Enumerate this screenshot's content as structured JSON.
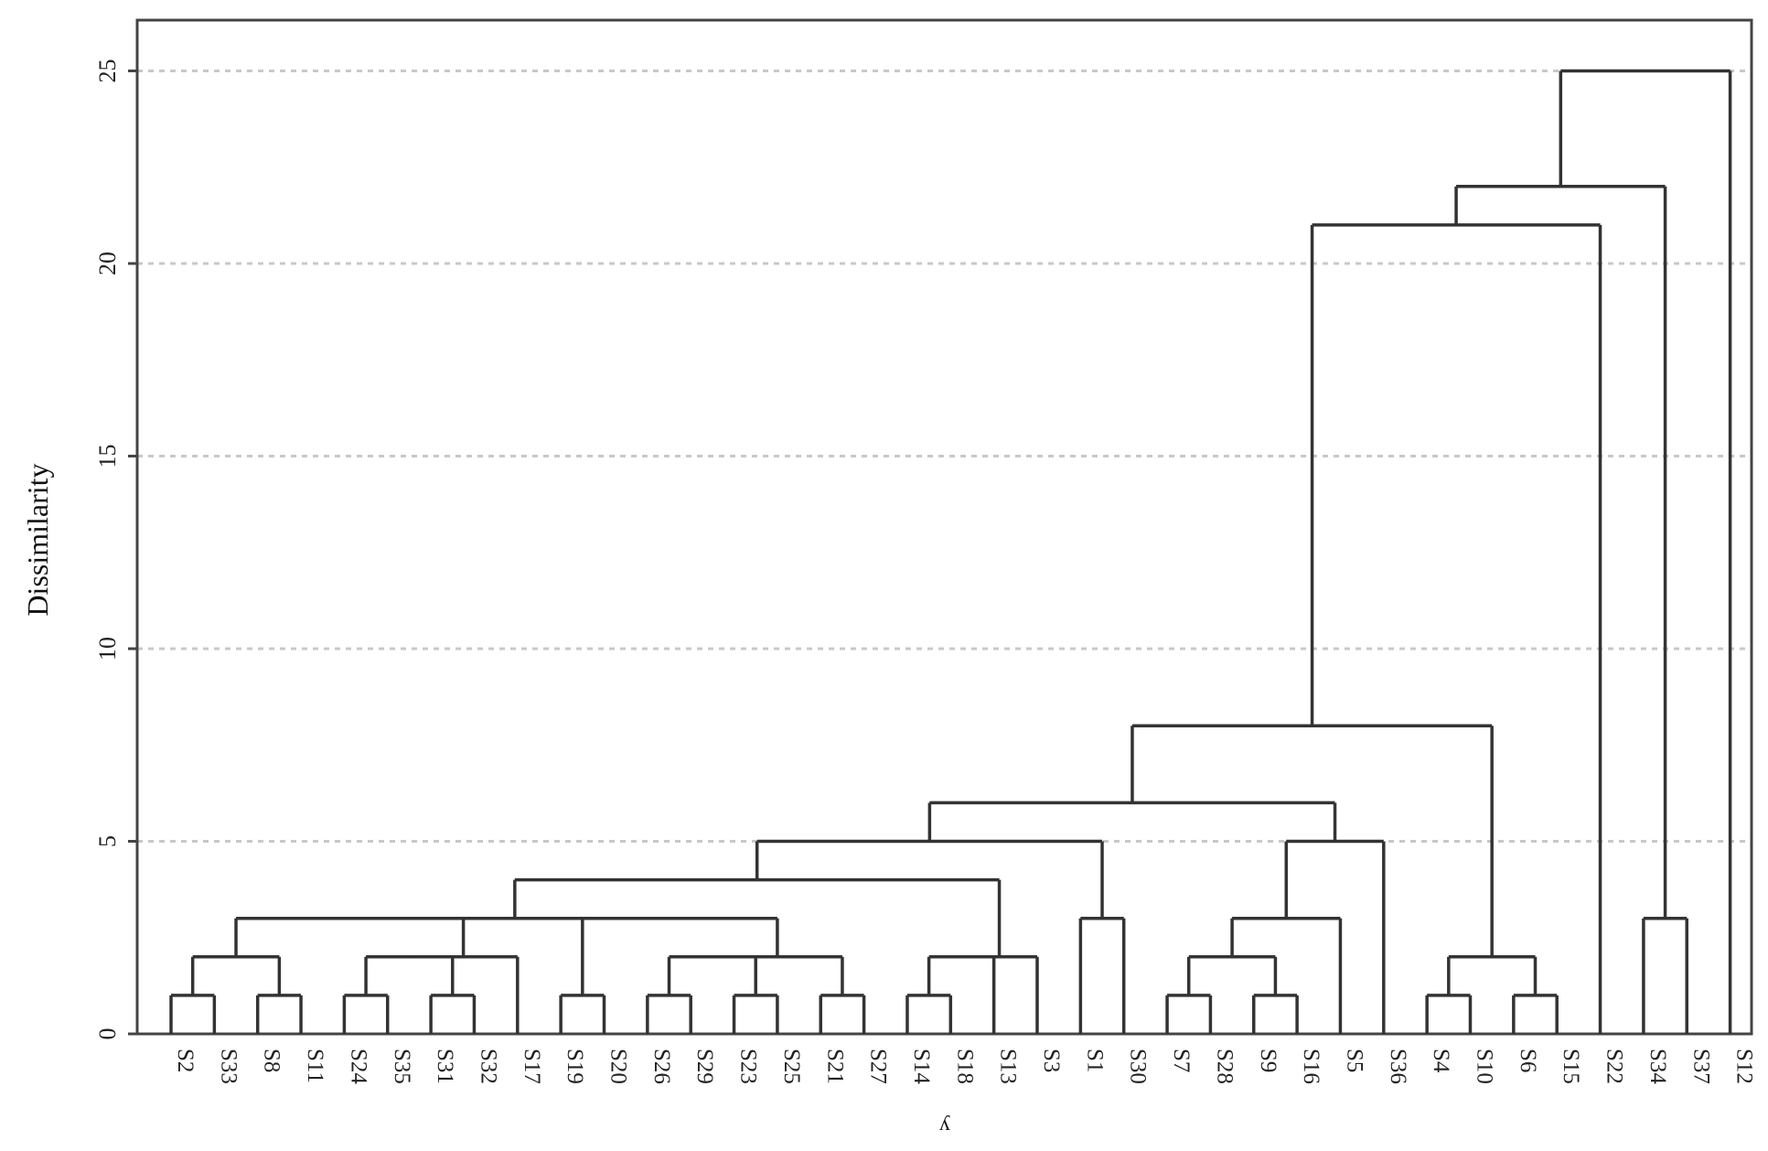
{
  "chart_data": {
    "type": "dendrogram",
    "ylabel": "Dissimilarity",
    "xlabel": "y",
    "ylim": [
      0,
      26.3
    ],
    "yticks": [
      0,
      5,
      10,
      15,
      20,
      25
    ],
    "grid": "horizontal dashed",
    "leaves": [
      "S2",
      "S33",
      "S8",
      "S11",
      "S24",
      "S35",
      "S31",
      "S32",
      "S17",
      "S19",
      "S20",
      "S26",
      "S29",
      "S23",
      "S25",
      "S21",
      "S27",
      "S14",
      "S18",
      "S13",
      "S3",
      "S1",
      "S30",
      "S7",
      "S28",
      "S9",
      "S16",
      "S5",
      "S36",
      "S4",
      "S10",
      "S6",
      "S15",
      "S22",
      "S34",
      "S37",
      "S12"
    ],
    "merges": [
      {
        "a": "S2",
        "b": "S33",
        "height": 1,
        "id": "m1"
      },
      {
        "a": "S8",
        "b": "S11",
        "height": 1,
        "id": "m2"
      },
      {
        "a": "S24",
        "b": "S35",
        "height": 1,
        "id": "m3"
      },
      {
        "a": "S31",
        "b": "S32",
        "height": 1,
        "id": "m4"
      },
      {
        "a": "S19",
        "b": "S20",
        "height": 1,
        "id": "m5"
      },
      {
        "a": "S26",
        "b": "S29",
        "height": 1,
        "id": "m6"
      },
      {
        "a": "S23",
        "b": "S25",
        "height": 1,
        "id": "m7"
      },
      {
        "a": "S21",
        "b": "S27",
        "height": 1,
        "id": "m8"
      },
      {
        "a": "S14",
        "b": "S18",
        "height": 1,
        "id": "m9"
      },
      {
        "a": "S7",
        "b": "S28",
        "height": 1,
        "id": "m10"
      },
      {
        "a": "S9",
        "b": "S16",
        "height": 1,
        "id": "m11"
      },
      {
        "a": "S4",
        "b": "S10",
        "height": 1,
        "id": "m12"
      },
      {
        "a": "S6",
        "b": "S15",
        "height": 1,
        "id": "m13"
      },
      {
        "a": "m1",
        "b": "m2",
        "height": 2,
        "id": "m14"
      },
      {
        "a": "m3",
        "b": "m4",
        "height": 2,
        "id": "m15"
      },
      {
        "a": "m15",
        "b": "S17",
        "height": 2,
        "id": "m16"
      },
      {
        "a": "m14",
        "b": "m16",
        "height": 3,
        "id": "m17"
      },
      {
        "a": "m6",
        "b": "m7",
        "height": 2,
        "id": "m18"
      },
      {
        "a": "m18",
        "b": "m8",
        "height": 2,
        "id": "m19"
      },
      {
        "a": "m5",
        "b": "m19",
        "height": 3,
        "id": "m20"
      },
      {
        "a": "m9",
        "b": "S13",
        "height": 2,
        "id": "m21"
      },
      {
        "a": "m21",
        "b": "S3",
        "height": 2,
        "id": "m22"
      },
      {
        "a": "m17",
        "b": "m20",
        "height": 3,
        "id": "m23"
      },
      {
        "a": "m23",
        "b": "m22",
        "height": 4,
        "id": "m24"
      },
      {
        "a": "S1",
        "b": "S30",
        "height": 3,
        "id": "m25"
      },
      {
        "a": "m24",
        "b": "m25",
        "height": 5,
        "id": "m26"
      },
      {
        "a": "m10",
        "b": "m11",
        "height": 2,
        "id": "m27"
      },
      {
        "a": "m27",
        "b": "S5",
        "height": 3,
        "id": "m28"
      },
      {
        "a": "m28",
        "b": "S36",
        "height": 5,
        "id": "m29"
      },
      {
        "a": "m26",
        "b": "m29",
        "height": 6,
        "id": "m30"
      },
      {
        "a": "m12",
        "b": "m13",
        "height": 2,
        "id": "m31"
      },
      {
        "a": "m30",
        "b": "m31",
        "height": 8,
        "id": "m32"
      },
      {
        "a": "m32",
        "b": "S22",
        "height": 21,
        "id": "m33"
      },
      {
        "a": "S34",
        "b": "S37",
        "height": 3,
        "id": "m34"
      },
      {
        "a": "m33",
        "b": "m34",
        "height": 22,
        "id": "m35"
      },
      {
        "a": "m35",
        "b": "S12",
        "height": 25,
        "id": "m36"
      }
    ]
  }
}
